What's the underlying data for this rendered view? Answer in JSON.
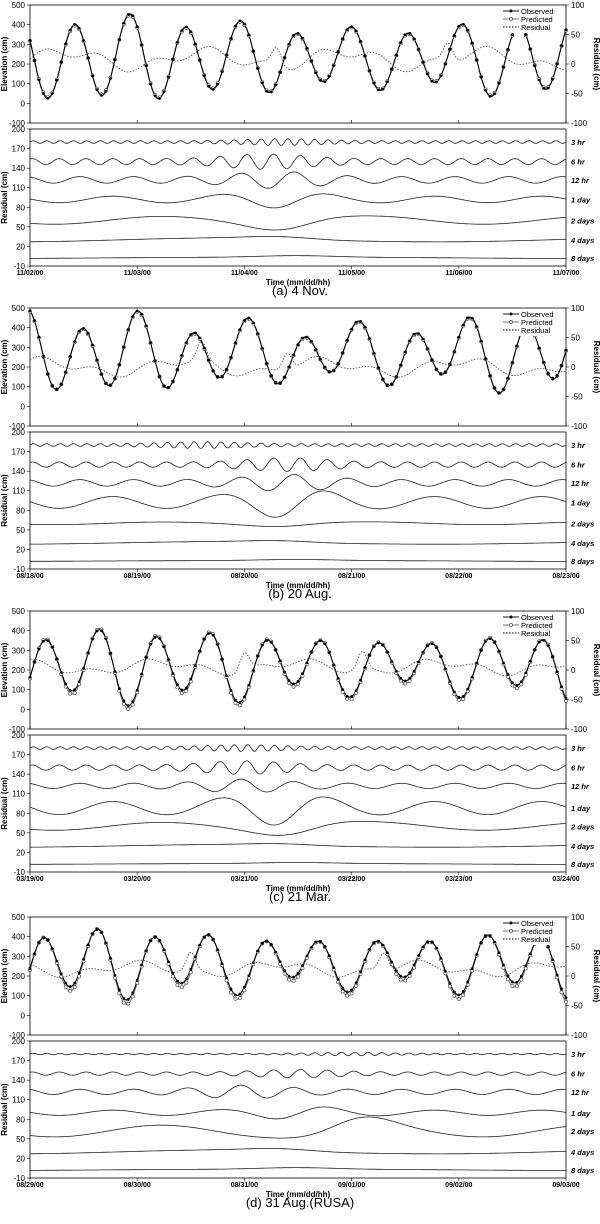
{
  "figure": {
    "panels": [
      {
        "caption": "(a) 4 Nov."
      },
      {
        "caption": "(b) 20 Aug."
      },
      {
        "caption": "(c) 21 Mar."
      },
      {
        "caption": "(d) 31 Aug.(RUSA)"
      }
    ]
  },
  "chart_data": [
    {
      "type": "line",
      "panel": "(a) 4 Nov.",
      "top": {
        "ylabel_left": "Elevation (cm)",
        "ylabel_right": "Residual (cm)",
        "yticks_left": [
          "500",
          "400",
          "300",
          "200",
          "100",
          "0",
          "-100"
        ],
        "yticks_right": [
          "100",
          "50",
          "0",
          "-50",
          "-100"
        ],
        "ylim_left": [
          -100,
          500
        ],
        "ylim_right": [
          -100,
          100
        ],
        "legend": [
          "Observed",
          "Predicted",
          "Residual"
        ],
        "legend_position": "top-right",
        "series": [
          {
            "name": "Observed",
            "axis": "left",
            "marker": "filled-circle",
            "tide": {
              "mean": 230,
              "a1": 170,
              "a2": 30,
              "period_days": 0.517,
              "phase": 1.2,
              "spring": 0.6
            }
          },
          {
            "name": "Predicted",
            "axis": "left",
            "marker": "open-circle",
            "tide": {
              "mean": 230,
              "a1": 165,
              "a2": 30,
              "period_days": 0.517,
              "phase": 1.2,
              "spring": 0.6
            }
          },
          {
            "name": "Residual",
            "axis": "right",
            "style": "dotted",
            "mean": 8,
            "amplitude": 22,
            "spikes_days": [
              2.3,
              3.9
            ]
          }
        ]
      },
      "bottom": {
        "ylabel": "Residual (cm)",
        "yticks": [
          "200",
          "170",
          "140",
          "110",
          "80",
          "50",
          "20",
          "-10"
        ],
        "ylim": [
          -10,
          200
        ],
        "bands": [
          {
            "label": "3 hr",
            "baseline": 180,
            "amplitude": 4,
            "event_day": 2.35
          },
          {
            "label": "6 hr",
            "baseline": 150,
            "amplitude": 9,
            "event_day": 2.2
          },
          {
            "label": "12 hr",
            "baseline": 122,
            "amplitude": 10,
            "event_day": 2.3
          },
          {
            "label": "1 day",
            "baseline": 92,
            "amplitude": 10,
            "event_day": 2.3
          },
          {
            "label": "2 days",
            "baseline": 60,
            "amplitude": 12,
            "event_day": 2.4
          },
          {
            "label": "4 days",
            "baseline": 30,
            "amplitude": 6,
            "event_day": 2.5
          },
          {
            "label": "8 days",
            "baseline": 2,
            "amplitude": 3,
            "event_day": 2.5
          }
        ]
      },
      "xlabel": "Time (mm/dd/hh)",
      "xticks": [
        "11/02/00",
        "11/03/00",
        "11/04/00",
        "11/05/00",
        "11/06/00",
        "11/07/00"
      ]
    },
    {
      "type": "line",
      "panel": "(b) 20 Aug.",
      "top": {
        "ylabel_left": "Elevation (cm)",
        "ylabel_right": "Residual (cm)",
        "yticks_left": [
          "500",
          "400",
          "300",
          "200",
          "100",
          "0",
          "-100"
        ],
        "yticks_right": [
          "100",
          "50",
          "0",
          "-50",
          "-100"
        ],
        "ylim_left": [
          -100,
          500
        ],
        "ylim_right": [
          -100,
          100
        ],
        "legend": [
          "Observed",
          "Predicted",
          "Residual"
        ],
        "legend_position": "top-right",
        "series": [
          {
            "name": "Observed",
            "axis": "left",
            "marker": "filled-circle",
            "tide": {
              "mean": 270,
              "a1": 150,
              "a2": 50,
              "period_days": 0.517,
              "phase": 0.3,
              "spring": 0.3
            }
          },
          {
            "name": "Predicted",
            "axis": "left",
            "marker": "open-circle",
            "tide": {
              "mean": 268,
              "a1": 148,
              "a2": 50,
              "period_days": 0.517,
              "phase": 0.3,
              "spring": 0.3
            }
          },
          {
            "name": "Residual",
            "axis": "right",
            "style": "dotted",
            "mean": 0,
            "amplitude": 18,
            "spikes_days": [
              1.6,
              2.4
            ]
          }
        ]
      },
      "bottom": {
        "ylabel": "Residual (cm)",
        "yticks": [
          "200",
          "170",
          "140",
          "110",
          "80",
          "50",
          "20",
          "-10"
        ],
        "ylim": [
          -10,
          200
        ],
        "bands": [
          {
            "label": "3 hr",
            "baseline": 180,
            "amplitude": 4,
            "event_day": 1.6
          },
          {
            "label": "6 hr",
            "baseline": 150,
            "amplitude": 8,
            "event_day": 2.4
          },
          {
            "label": "12 hr",
            "baseline": 122,
            "amplitude": 10,
            "event_day": 2.4
          },
          {
            "label": "1 day",
            "baseline": 92,
            "amplitude": 18,
            "event_day": 2.4
          },
          {
            "label": "2 days",
            "baseline": 60,
            "amplitude": 4,
            "event_day": 2.4
          },
          {
            "label": "4 days",
            "baseline": 30,
            "amplitude": 4,
            "event_day": 2.5
          },
          {
            "label": "8 days",
            "baseline": 2,
            "amplitude": 2,
            "event_day": 2.5
          }
        ]
      },
      "xlabel": "Time (mm/dd/hh)",
      "xticks": [
        "08/18/00",
        "08/19/00",
        "08/20/00",
        "08/21/00",
        "08/22/00",
        "08/23/00"
      ]
    },
    {
      "type": "line",
      "panel": "(c) 21 Mar.",
      "top": {
        "ylabel_left": "Elevation (cm)",
        "ylabel_right": "Residual (cm)",
        "yticks_left": [
          "500",
          "400",
          "300",
          "200",
          "100",
          "0",
          "-100"
        ],
        "yticks_right": [
          "100",
          "50",
          "0",
          "-50",
          "-100"
        ],
        "ylim_left": [
          -100,
          500
        ],
        "ylim_right": [
          -100,
          100
        ],
        "legend": [
          "Observed",
          "Predicted",
          "Residual"
        ],
        "legend_position": "top-right",
        "series": [
          {
            "name": "Observed",
            "axis": "left",
            "marker": "filled-circle",
            "tide": {
              "mean": 220,
              "a1": 140,
              "a2": 40,
              "period_days": 0.517,
              "phase": 4.6,
              "spring": 0.9
            }
          },
          {
            "name": "Predicted",
            "axis": "left",
            "marker": "open-circle",
            "tide": {
              "mean": 215,
              "a1": 150,
              "a2": 40,
              "period_days": 0.517,
              "phase": 4.6,
              "spring": 0.9
            }
          },
          {
            "name": "Residual",
            "axis": "right",
            "style": "dotted",
            "mean": 5,
            "amplitude": 15,
            "spikes_days": [
              2.0,
              3.1
            ]
          }
        ]
      },
      "bottom": {
        "ylabel": "Residual (cm)",
        "yticks": [
          "200",
          "170",
          "140",
          "110",
          "80",
          "50",
          "20",
          "-10"
        ],
        "ylim": [
          -10,
          200
        ],
        "bands": [
          {
            "label": "3 hr",
            "baseline": 180,
            "amplitude": 4,
            "event_day": 2.0
          },
          {
            "label": "6 hr",
            "baseline": 150,
            "amplitude": 8,
            "event_day": 2.0
          },
          {
            "label": "12 hr",
            "baseline": 122,
            "amplitude": 8,
            "event_day": 2.0
          },
          {
            "label": "1 day",
            "baseline": 88,
            "amplitude": 20,
            "event_day": 2.3
          },
          {
            "label": "2 days",
            "baseline": 60,
            "amplitude": 12,
            "event_day": 2.5
          },
          {
            "label": "4 days",
            "baseline": 30,
            "amplitude": 4,
            "event_day": 2.5
          },
          {
            "label": "8 days",
            "baseline": 2,
            "amplitude": 2,
            "event_day": 2.5
          }
        ]
      },
      "xlabel": "Time (mm/dd/hh)",
      "xticks": [
        "03/19/00",
        "03/20/00",
        "03/21/00",
        "03/22/00",
        "03/23/00",
        "03/24/00"
      ]
    },
    {
      "type": "line",
      "panel": "(d) 31 Aug.(RUSA)",
      "top": {
        "ylabel_left": "Elevation (cm)",
        "ylabel_right": "Residual (cm)",
        "yticks_left": [
          "500",
          "400",
          "300",
          "200",
          "100",
          "0",
          "-100"
        ],
        "yticks_right": [
          "100",
          "50",
          "0",
          "-50",
          "-100"
        ],
        "ylim_left": [
          -100,
          500
        ],
        "ylim_right": [
          -100,
          100
        ],
        "legend": [
          "Observed",
          "Predicted",
          "Residual"
        ],
        "legend_position": "top-right",
        "series": [
          {
            "name": "Observed",
            "axis": "left",
            "marker": "filled-circle",
            "tide": {
              "mean": 265,
              "a1": 130,
              "a2": 40,
              "period_days": 0.517,
              "phase": 4.8,
              "spring": 0.5
            }
          },
          {
            "name": "Predicted",
            "axis": "left",
            "marker": "open-circle",
            "tide": {
              "mean": 255,
              "a1": 140,
              "a2": 40,
              "period_days": 0.517,
              "phase": 4.8,
              "spring": 0.5
            }
          },
          {
            "name": "Residual",
            "axis": "right",
            "style": "dotted",
            "mean": 12,
            "amplitude": 15,
            "spikes_days": [
              1.5,
              3.3
            ]
          }
        ]
      },
      "bottom": {
        "ylabel": "Residual (cm)",
        "yticks": [
          "200",
          "170",
          "140",
          "110",
          "80",
          "50",
          "20",
          "-10"
        ],
        "ylim": [
          -10,
          200
        ],
        "bands": [
          {
            "label": "3 hr",
            "baseline": 180,
            "amplitude": 2,
            "event_day": 3.0
          },
          {
            "label": "6 hr",
            "baseline": 150,
            "amplitude": 5,
            "event_day": 2.5
          },
          {
            "label": "12 hr",
            "baseline": 122,
            "amplitude": 8,
            "event_day": 2.0
          },
          {
            "label": "1 day",
            "baseline": 90,
            "amplitude": 8,
            "event_day": 2.5
          },
          {
            "label": "2 days",
            "baseline": 62,
            "amplitude": 18,
            "event_day": 3.0
          },
          {
            "label": "4 days",
            "baseline": 30,
            "amplitude": 6,
            "event_day": 2.5
          },
          {
            "label": "8 days",
            "baseline": 2,
            "amplitude": 3,
            "event_day": 2.5
          }
        ]
      },
      "xlabel": "Time (mm/dd/hh)",
      "xticks": [
        "08/29/00",
        "08/30/00",
        "08/31/00",
        "09/01/00",
        "09/02/00",
        "09/03/00"
      ]
    }
  ]
}
